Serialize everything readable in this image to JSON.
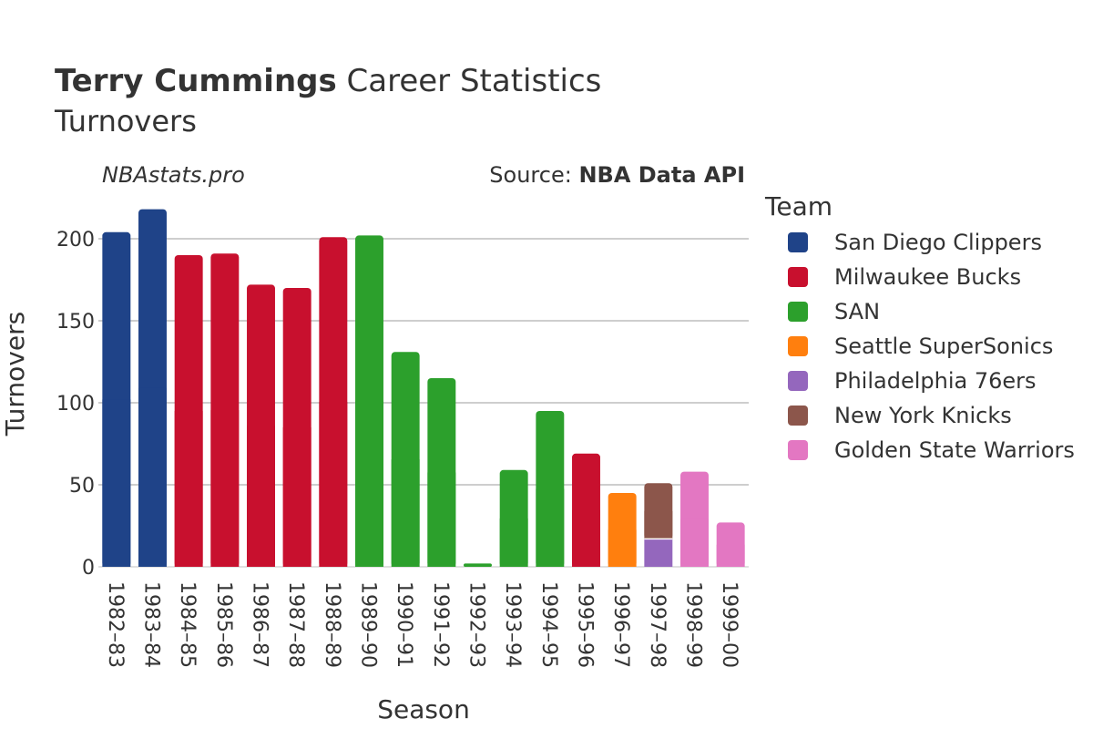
{
  "header": {
    "title_bold": "Terry Cummings",
    "title_rest": " Career Statistics",
    "subtitle": "Turnovers",
    "brand": "NBAstats.pro",
    "source_prefix": "Source: ",
    "source_bold": "NBA Data API"
  },
  "chart_data": {
    "type": "bar",
    "stacked": true,
    "title": "Terry Cummings Career Statistics",
    "subtitle": "Turnovers",
    "xlabel": "Season",
    "ylabel": "Turnovers",
    "ylim": [
      0,
      220
    ],
    "yticks": [
      0,
      50,
      100,
      150,
      200
    ],
    "grid": true,
    "legend_title": "Team",
    "legend_position": "right",
    "teams": [
      {
        "name": "San Diego Clippers",
        "color": "#1f4388"
      },
      {
        "name": "Milwaukee Bucks",
        "color": "#c8102e"
      },
      {
        "name": "SAN",
        "color": "#2ca02c"
      },
      {
        "name": "Seattle SuperSonics",
        "color": "#ff7f0e"
      },
      {
        "name": "Philadelphia 76ers",
        "color": "#9467bd"
      },
      {
        "name": "New York Knicks",
        "color": "#8c564b"
      },
      {
        "name": "Golden State Warriors",
        "color": "#e377c2"
      }
    ],
    "categories": [
      "1982–83",
      "1983–84",
      "1984–85",
      "1985–86",
      "1986–87",
      "1987–88",
      "1988–89",
      "1989–90",
      "1990–91",
      "1991–92",
      "1992–93",
      "1993–94",
      "1994–95",
      "1995–96",
      "1996–97",
      "1997–98",
      "1998–99",
      "1999–00"
    ],
    "bars": [
      [
        {
          "team": "San Diego Clippers",
          "value": 204
        }
      ],
      [
        {
          "team": "San Diego Clippers",
          "value": 218
        }
      ],
      [
        {
          "team": "Milwaukee Bucks",
          "value": 190
        }
      ],
      [
        {
          "team": "Milwaukee Bucks",
          "value": 191
        }
      ],
      [
        {
          "team": "Milwaukee Bucks",
          "value": 172
        }
      ],
      [
        {
          "team": "Milwaukee Bucks",
          "value": 170
        }
      ],
      [
        {
          "team": "Milwaukee Bucks",
          "value": 201
        }
      ],
      [
        {
          "team": "SAN",
          "value": 202
        }
      ],
      [
        {
          "team": "SAN",
          "value": 131
        }
      ],
      [
        {
          "team": "SAN",
          "value": 115
        }
      ],
      [
        {
          "team": "SAN",
          "value": 2
        }
      ],
      [
        {
          "team": "SAN",
          "value": 59
        }
      ],
      [
        {
          "team": "SAN",
          "value": 95
        }
      ],
      [
        {
          "team": "Milwaukee Bucks",
          "value": 69
        }
      ],
      [
        {
          "team": "Seattle SuperSonics",
          "value": 45
        }
      ],
      [
        {
          "team": "Philadelphia 76ers",
          "value": 17
        },
        {
          "team": "New York Knicks",
          "value": 34
        }
      ],
      [
        {
          "team": "Golden State Warriors",
          "value": 58
        }
      ],
      [
        {
          "team": "Golden State Warriors",
          "value": 27
        }
      ]
    ]
  }
}
